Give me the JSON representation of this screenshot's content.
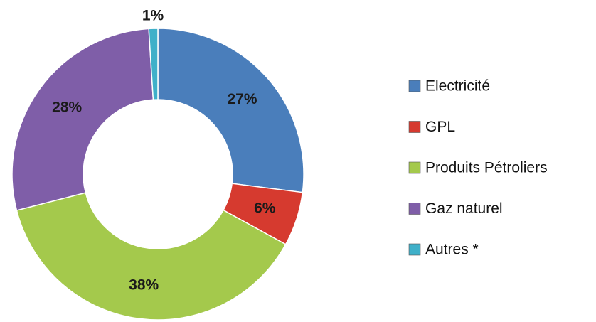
{
  "chart_data": {
    "type": "donut",
    "categories": [
      "Electricité",
      "GPL",
      "Produits Pétroliers",
      "Gaz naturel",
      "Autres *"
    ],
    "values": [
      27,
      6,
      38,
      28,
      1
    ],
    "value_labels": [
      "27%",
      "6%",
      "38%",
      "28%",
      "1%"
    ],
    "colors": [
      "#4a7ebb",
      "#d63a2f",
      "#a4c94c",
      "#7f5ea8",
      "#3fb0c9"
    ],
    "legend": "right"
  }
}
